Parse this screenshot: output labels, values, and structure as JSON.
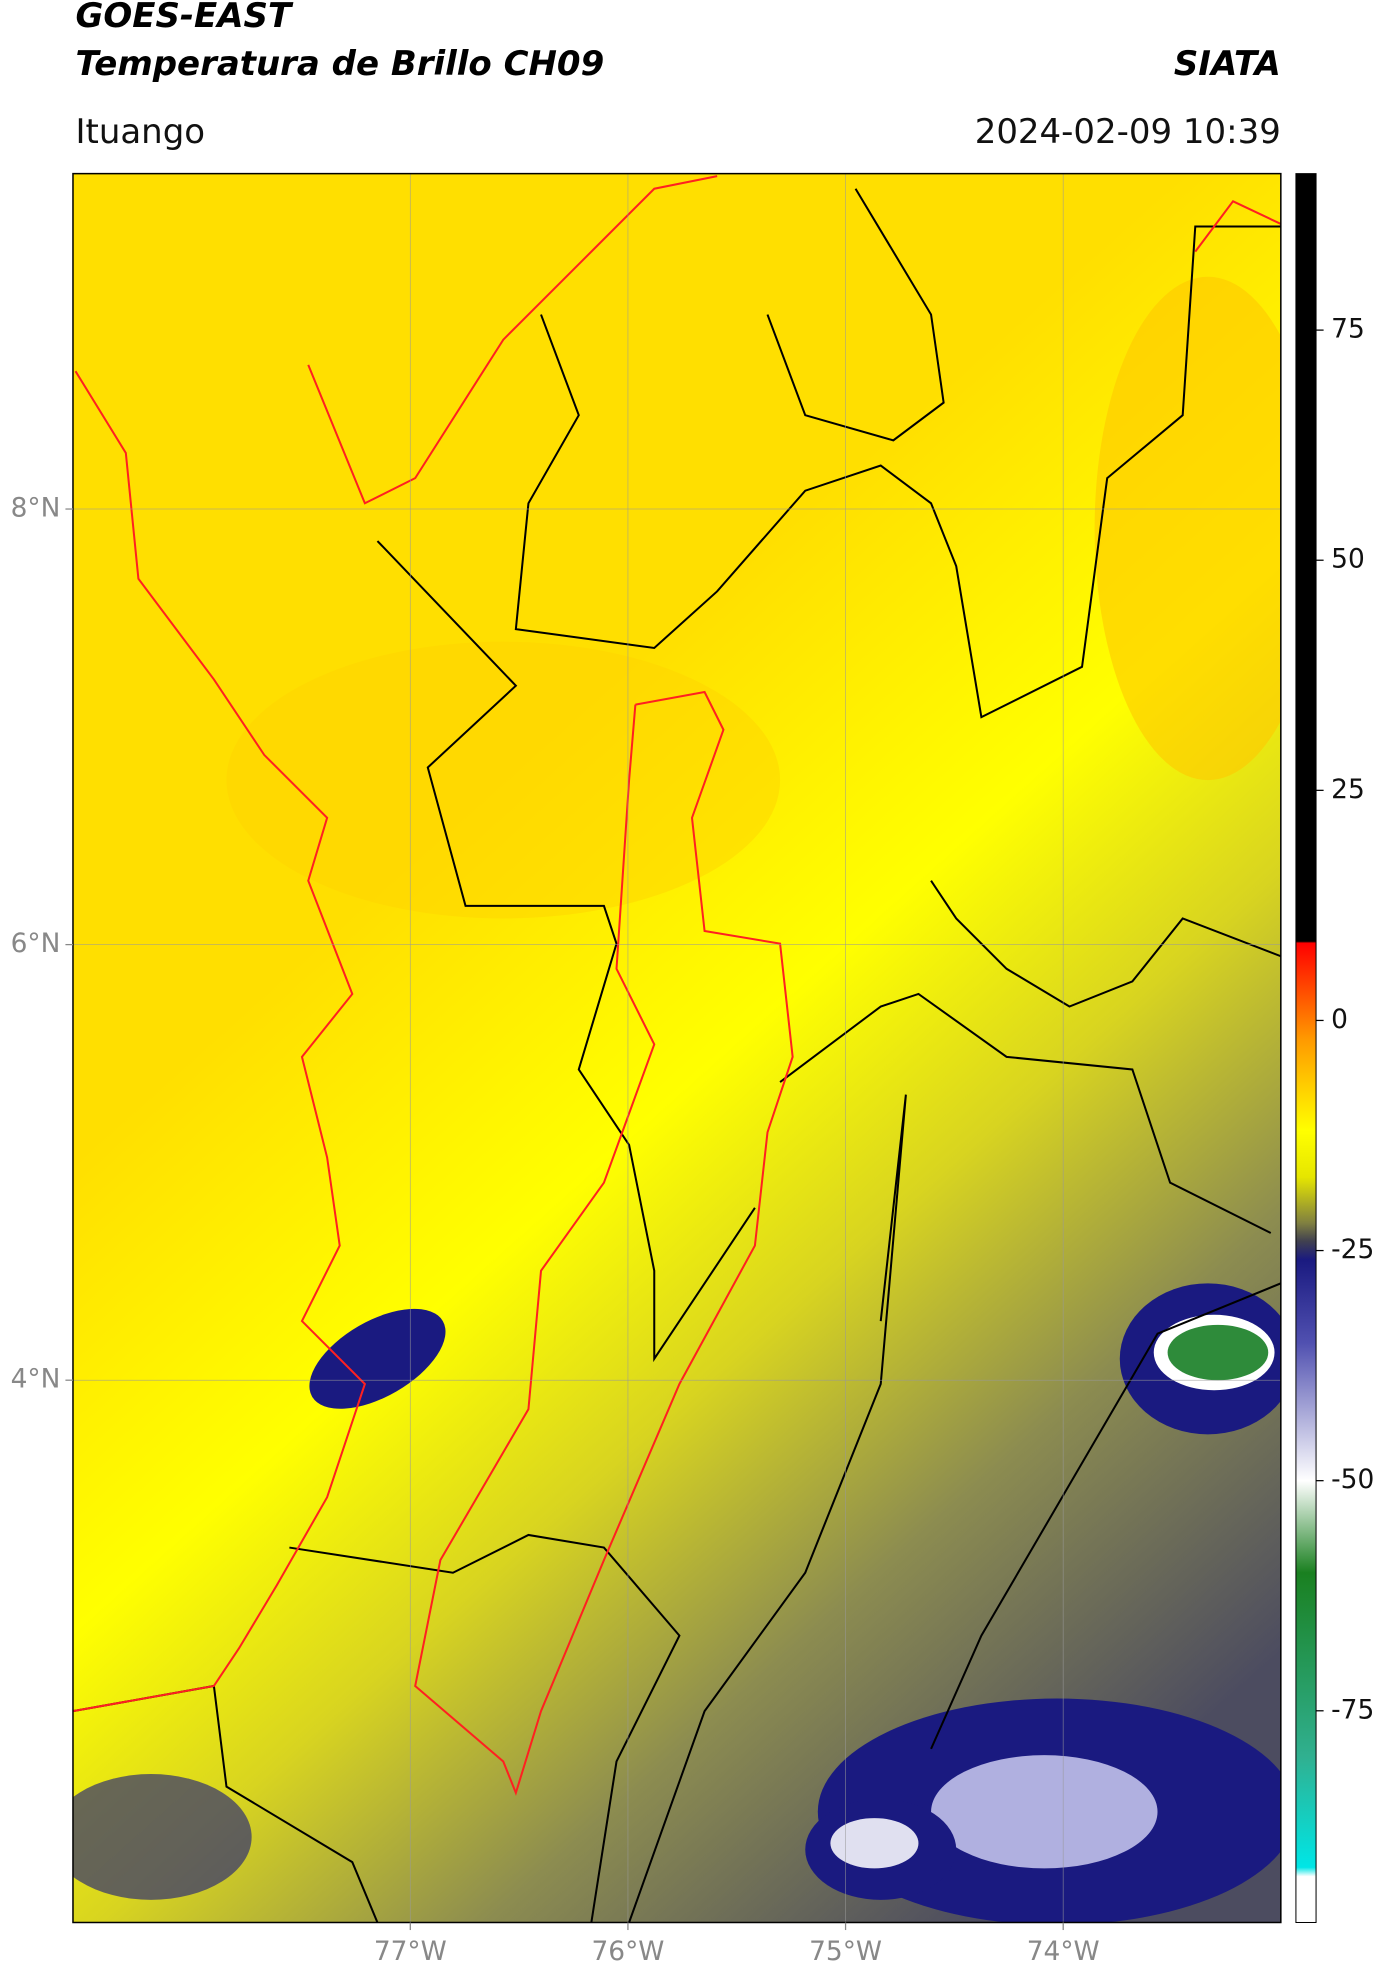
{
  "header": {
    "title": "GOES-EAST",
    "subtitle": "Temperatura de Brillo CH09",
    "agency": "SIATA",
    "location": "Ituango",
    "datetime": "2024-02-09 10:39"
  },
  "chart_data": {
    "type": "map",
    "xlim": [
      -78.55,
      -73.0
    ],
    "ylim": [
      1.51,
      9.54
    ],
    "xticks": [
      {
        "value": -77,
        "label": "77°W"
      },
      {
        "value": -76,
        "label": "76°W"
      },
      {
        "value": -75,
        "label": "75°W"
      },
      {
        "value": -74,
        "label": "74°W"
      }
    ],
    "yticks": [
      {
        "value": 8,
        "label": "8°N"
      },
      {
        "value": 6,
        "label": "6°N"
      },
      {
        "value": 4,
        "label": "4°N"
      }
    ],
    "grid": true,
    "colorbar": {
      "clim": [
        -98,
        92
      ],
      "ticks": [
        75,
        50,
        25,
        0,
        -25,
        -50,
        -75
      ],
      "colormap": [
        {
          "value": 92,
          "color": "#000000"
        },
        {
          "value": 8.6,
          "color": "#000000"
        },
        {
          "value": 8.4,
          "color": "#ff0000"
        },
        {
          "value": -2,
          "color": "#ff9900"
        },
        {
          "value": -12,
          "color": "#ffff00"
        },
        {
          "value": -17,
          "color": "#e6e600"
        },
        {
          "value": -22,
          "color": "#808040"
        },
        {
          "value": -24,
          "color": "#404050"
        },
        {
          "value": -26,
          "color": "#1a1a80"
        },
        {
          "value": -35,
          "color": "#5050b0"
        },
        {
          "value": -50,
          "color": "#ffffff"
        },
        {
          "value": -60,
          "color": "#1a8020"
        },
        {
          "value": -80,
          "color": "#30b090"
        },
        {
          "value": -92,
          "color": "#00e6e6"
        },
        {
          "value": -93,
          "color": "#ffffff"
        },
        {
          "value": -98,
          "color": "#ffffff"
        }
      ]
    }
  }
}
